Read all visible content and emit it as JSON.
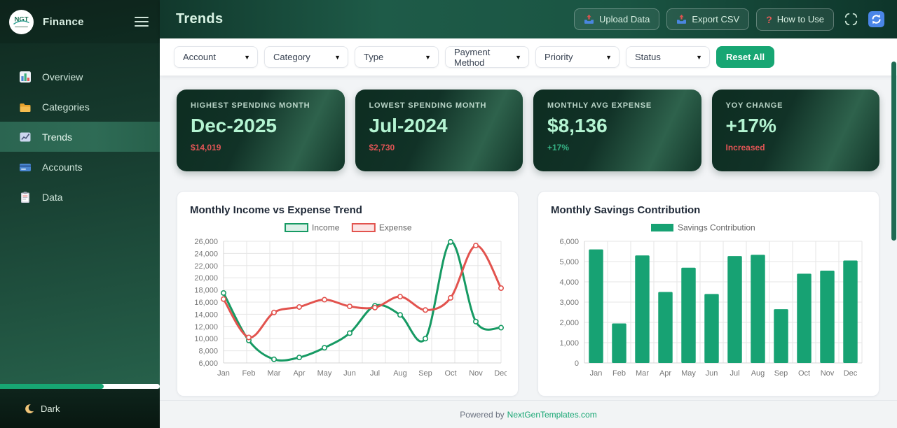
{
  "app": {
    "brand": "Finance",
    "logo_text": "NGT"
  },
  "sidebar": {
    "items": [
      {
        "label": "Overview"
      },
      {
        "label": "Categories"
      },
      {
        "label": "Trends"
      },
      {
        "label": "Accounts"
      },
      {
        "label": "Data"
      }
    ],
    "active_item": "Trends",
    "progress_percent": 65,
    "theme_toggle_label": "Dark"
  },
  "header": {
    "title": "Trends",
    "upload_label": "Upload Data",
    "export_label": "Export CSV",
    "help_label": "How to Use",
    "help_icon_glyph": "?"
  },
  "filters": {
    "dropdowns": [
      {
        "label": "Account"
      },
      {
        "label": "Category"
      },
      {
        "label": "Type"
      },
      {
        "label": "Payment Method"
      },
      {
        "label": "Priority"
      },
      {
        "label": "Status"
      }
    ],
    "caret_glyph": "▼",
    "reset_label": "Reset All"
  },
  "stats": [
    {
      "label": "HIGHEST SPENDING MONTH",
      "value": "Dec-2025",
      "sub": "$14,019",
      "sub_color": "#e05555"
    },
    {
      "label": "LOWEST SPENDING MONTH",
      "value": "Jul-2024",
      "sub": "$2,730",
      "sub_color": "#e05555"
    },
    {
      "label": "MONTHLY AVG EXPENSE",
      "value": "$8,136",
      "sub": "+17%",
      "sub_color": "#36b285"
    },
    {
      "label": "YOY CHANGE",
      "value": "+17%",
      "sub": "Increased",
      "sub_color": "#e05555"
    }
  ],
  "footer": {
    "text": "Powered by",
    "link_text": "NextGenTemplates.com"
  },
  "colors": {
    "accent_green": "#17a673",
    "header_text": "#d8f3e4",
    "grid": "#e6e6e6",
    "tick_text": "#777777"
  },
  "chart_data": [
    {
      "type": "line",
      "title": "Monthly Income vs Expense Trend",
      "categories": [
        "Jan",
        "Feb",
        "Mar",
        "Apr",
        "May",
        "Jun",
        "Jul",
        "Aug",
        "Sep",
        "Oct",
        "Nov",
        "Dec"
      ],
      "series": [
        {
          "name": "Income",
          "color": "#169a63",
          "values": [
            17500,
            9700,
            6600,
            6900,
            8500,
            10900,
            15400,
            13900,
            10000,
            25900,
            12800,
            11800
          ]
        },
        {
          "name": "Expense",
          "color": "#e2534e",
          "values": [
            16500,
            10200,
            14300,
            15200,
            16400,
            15300,
            15100,
            16900,
            14700,
            16700,
            25300,
            18300
          ]
        }
      ],
      "xlabel": "",
      "ylabel": "",
      "ylim": [
        6000,
        26000
      ],
      "ytick_step": 2000,
      "grid": true,
      "legend_position": "top"
    },
    {
      "type": "bar",
      "title": "Monthly Savings Contribution",
      "categories": [
        "Jan",
        "Feb",
        "Mar",
        "Apr",
        "May",
        "Jun",
        "Jul",
        "Aug",
        "Sep",
        "Oct",
        "Nov",
        "Dec"
      ],
      "series": [
        {
          "name": "Savings Contribution",
          "color": "#17a273",
          "values": [
            5600,
            1950,
            5300,
            3500,
            4700,
            3400,
            5270,
            5330,
            2650,
            4400,
            4550,
            5050
          ]
        }
      ],
      "xlabel": "",
      "ylabel": "",
      "ylim": [
        0,
        6000
      ],
      "ytick_step": 1000,
      "grid": true,
      "legend_position": "top"
    }
  ]
}
